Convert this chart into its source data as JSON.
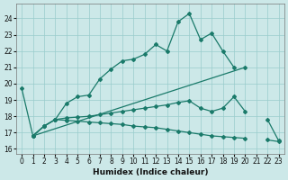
{
  "xlabel": "Humidex (Indice chaleur)",
  "bg_color": "#cce8e8",
  "grid_color": "#99cccc",
  "line_color": "#1a7a6a",
  "xlim": [
    -0.5,
    23.5
  ],
  "ylim": [
    15.7,
    24.9
  ],
  "xticks": [
    0,
    1,
    2,
    3,
    4,
    5,
    6,
    7,
    8,
    9,
    10,
    11,
    12,
    13,
    14,
    15,
    16,
    17,
    18,
    19,
    20,
    21,
    22,
    23
  ],
  "yticks": [
    16,
    17,
    18,
    19,
    20,
    21,
    22,
    23,
    24
  ],
  "line1_x": [
    0,
    1,
    2,
    3,
    4,
    5,
    6,
    7,
    8,
    9,
    10,
    11,
    12,
    13,
    14,
    15,
    16,
    17,
    18,
    19
  ],
  "line1_y": [
    19.7,
    16.8,
    17.4,
    17.8,
    18.8,
    19.2,
    19.3,
    20.3,
    20.9,
    21.4,
    21.5,
    21.8,
    22.4,
    22.0,
    23.8,
    24.3,
    22.7,
    23.1,
    22.0,
    21.0
  ],
  "line2_x": [
    1,
    20
  ],
  "line2_y": [
    16.8,
    21.0
  ],
  "line3_x": [
    1,
    2,
    3,
    4,
    5,
    6,
    7,
    8,
    9,
    10,
    11,
    12,
    13,
    14,
    15,
    16,
    17,
    18,
    19,
    20,
    22,
    23
  ],
  "line3_y": [
    16.8,
    17.4,
    17.8,
    17.9,
    17.95,
    18.0,
    18.1,
    18.2,
    18.3,
    18.4,
    18.5,
    18.6,
    18.7,
    18.85,
    18.95,
    18.5,
    18.3,
    18.5,
    19.2,
    18.3,
    17.8,
    16.5
  ],
  "line4_x": [
    1,
    2,
    3,
    4,
    5,
    6,
    7,
    8,
    9,
    10,
    11,
    12,
    13,
    14,
    15,
    16,
    17,
    18,
    19,
    20,
    22,
    23
  ],
  "line4_y": [
    16.8,
    17.4,
    17.8,
    17.75,
    17.7,
    17.65,
    17.6,
    17.55,
    17.5,
    17.4,
    17.35,
    17.3,
    17.2,
    17.1,
    17.0,
    16.9,
    16.8,
    16.75,
    16.7,
    16.65,
    16.55,
    16.45
  ]
}
